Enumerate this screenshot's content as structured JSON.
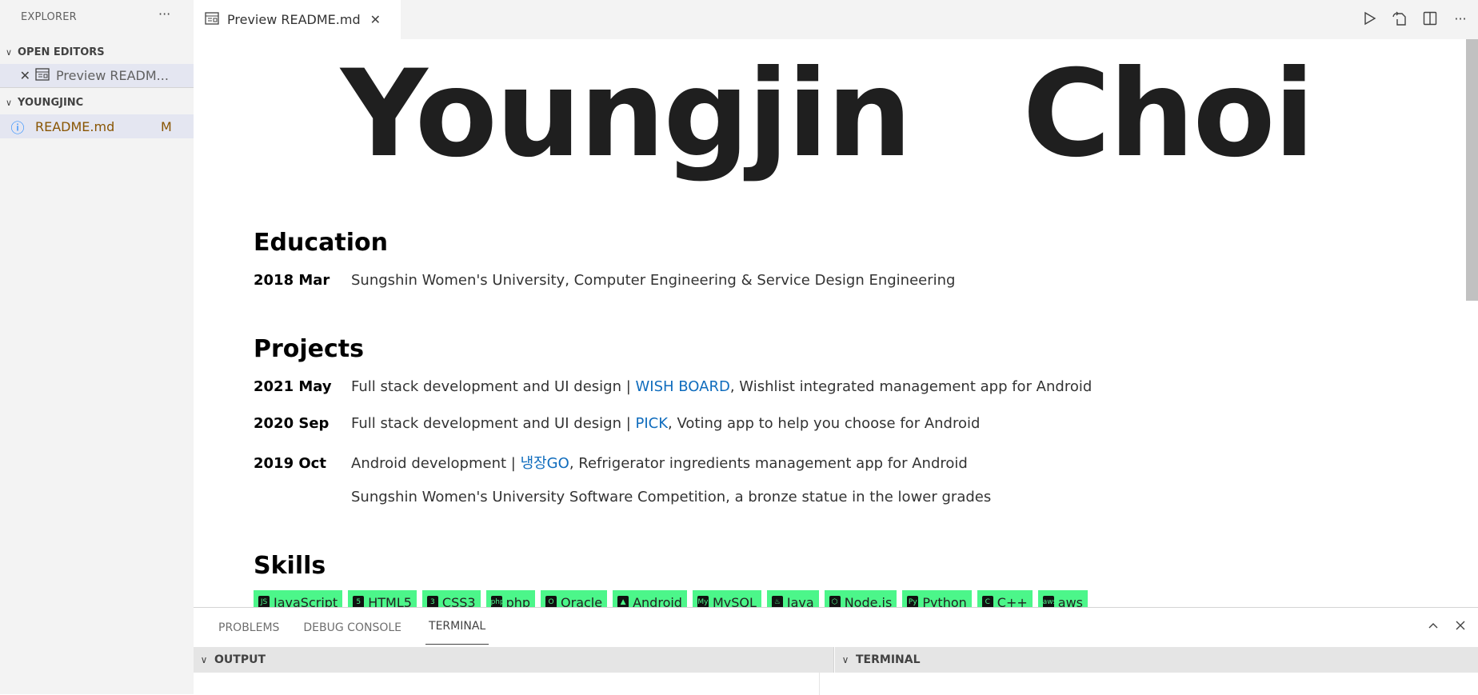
{
  "sidebar": {
    "title": "EXPLORER",
    "more": "···",
    "open_editors": {
      "label": "OPEN EDITORS",
      "items": [
        {
          "label": "Preview README.md",
          "display": "Preview READM..."
        }
      ]
    },
    "folder": {
      "label": "YOUNGJINC",
      "items": [
        {
          "label": "README.md",
          "badge": "M",
          "color": "#895503"
        }
      ]
    }
  },
  "tabs": [
    {
      "label": "Preview README.md",
      "active": true
    }
  ],
  "actions": [
    "run-icon",
    "open-source-icon",
    "split-editor-icon",
    "more-icon"
  ],
  "preview": {
    "title_first": "Youngjin",
    "title_last": "Choi",
    "education": {
      "heading": "Education",
      "rows": [
        {
          "date": "2018 Mar",
          "text": "Sungshin Women's University, Computer Engineering & Service Design Engineering"
        }
      ]
    },
    "projects": {
      "heading": "Projects",
      "rows": [
        {
          "date": "2021 May",
          "pre": "Full stack development and UI design | ",
          "link": "WISH BOARD",
          "post": ", Wishlist integrated management app for Android"
        },
        {
          "date": "2020 Sep",
          "pre": "Full stack development and UI design | ",
          "link": "PICK",
          "post": ", Voting app to help you choose for Android"
        },
        {
          "date": "2019 Oct",
          "pre": "Android development | ",
          "link": "냉장GO",
          "post": ", Refrigerator ingredients management app for Android"
        },
        {
          "date": "",
          "pre": "Sungshin Women's University Software Competition, a bronze statue in the lower grades",
          "link": "",
          "post": ""
        }
      ]
    },
    "skills": {
      "heading": "Skills",
      "badges": [
        "JavaScript",
        "HTML5",
        "CSS3",
        "php",
        "Oracle",
        "Android",
        "MySQL",
        "Java",
        "Node.js",
        "Python",
        "C++",
        "aws"
      ],
      "color": "#4cf68a"
    },
    "link_color": "#0f6cbd"
  },
  "panel": {
    "tabs": [
      "PROBLEMS",
      "DEBUG CONSOLE",
      "TERMINAL"
    ],
    "active_tab": "TERMINAL",
    "sections": [
      "OUTPUT",
      "TERMINAL"
    ]
  }
}
